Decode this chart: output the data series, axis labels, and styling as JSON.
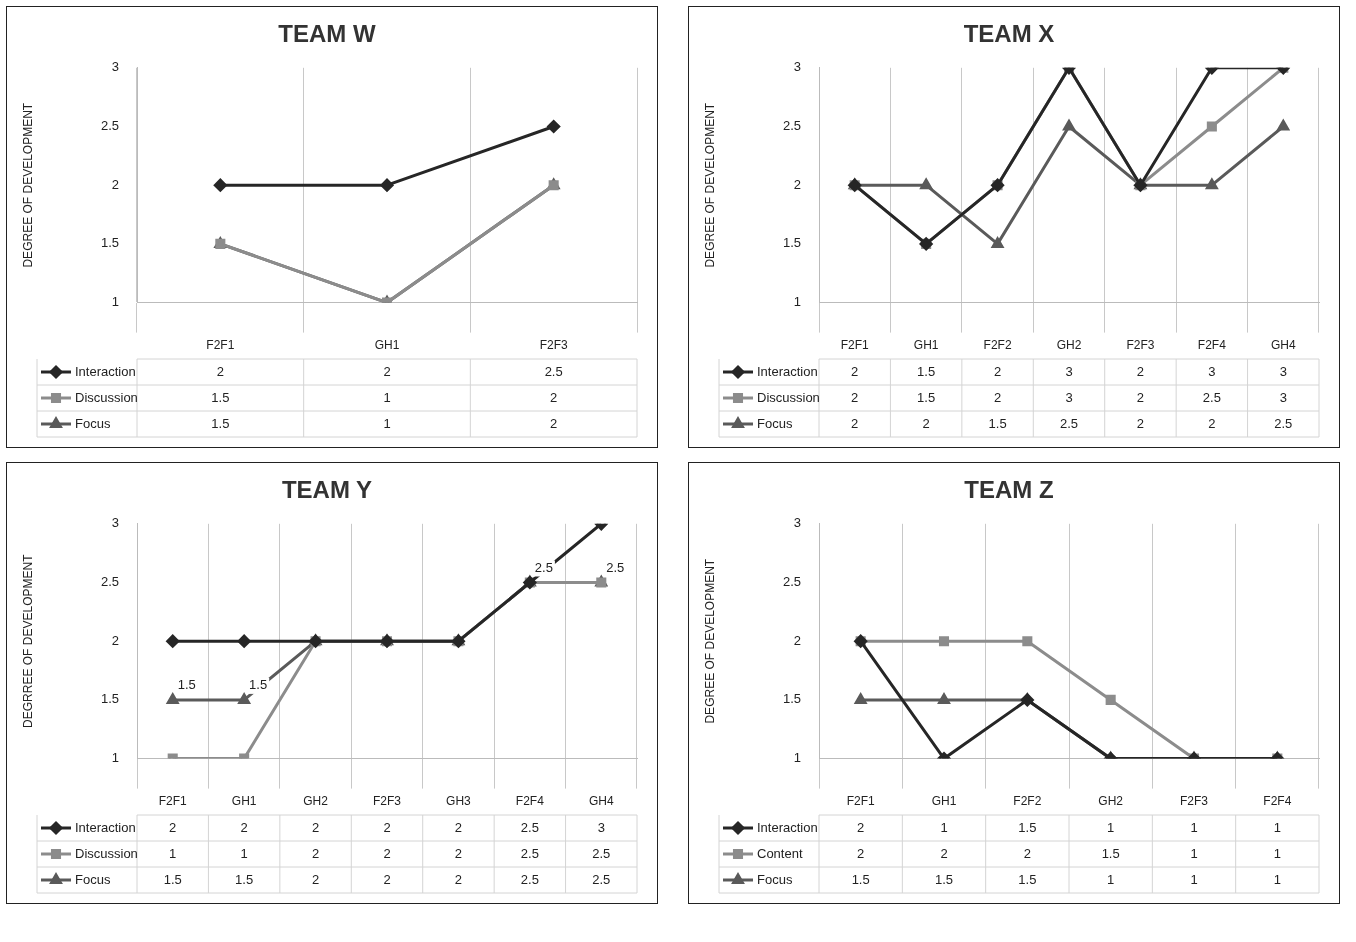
{
  "chart_data": [
    {
      "type": "line",
      "title": "TEAM W",
      "ylabel": "DEGREE OF DEVELOPMENT",
      "categories": [
        "F2F1",
        "GH1",
        "F2F3"
      ],
      "ylim": [
        1,
        3
      ],
      "yticks": [
        1,
        1.5,
        2,
        2.5,
        3
      ],
      "grid": "x",
      "legend": "bottom",
      "data_labels": true,
      "series": [
        {
          "name": "Interaction",
          "color": "#262626",
          "marker": "diamond",
          "values": [
            2,
            2,
            2.5
          ]
        },
        {
          "name": "Discussion",
          "color": "#8c8c8c",
          "marker": "square",
          "values": [
            1.5,
            1,
            2
          ]
        },
        {
          "name": "Focus",
          "color": "#5a5a5a",
          "marker": "triangle",
          "values": [
            1.5,
            1,
            2
          ]
        }
      ]
    },
    {
      "type": "line",
      "title": "TEAM X",
      "ylabel": "DEGREE OF DEVELOPMENT",
      "categories": [
        "F2F1",
        "GH1",
        "F2F2",
        "GH2",
        "F2F3",
        "F2F4",
        "GH4"
      ],
      "ylim": [
        1,
        3
      ],
      "yticks": [
        1,
        1.5,
        2,
        2.5,
        3
      ],
      "grid": "x",
      "legend": "bottom",
      "data_labels": true,
      "series": [
        {
          "name": "Interaction",
          "color": "#262626",
          "marker": "diamond",
          "values": [
            2,
            1.5,
            2,
            3,
            2,
            3,
            3
          ]
        },
        {
          "name": "Discussion",
          "color": "#8c8c8c",
          "marker": "square",
          "values": [
            2,
            1.5,
            2,
            3,
            2,
            2.5,
            3
          ]
        },
        {
          "name": "Focus",
          "color": "#5a5a5a",
          "marker": "triangle",
          "values": [
            2,
            2,
            1.5,
            2.5,
            2,
            2,
            2.5
          ]
        }
      ]
    },
    {
      "type": "line",
      "title": "TEAM Y",
      "ylabel": "DEGRREE OF DEVELOPMENT",
      "categories": [
        "F2F1",
        "GH1",
        "GH2",
        "F2F3",
        "GH3",
        "F2F4",
        "GH4"
      ],
      "ylim": [
        1,
        3
      ],
      "yticks": [
        1,
        1.5,
        2,
        2.5,
        3
      ],
      "grid": "x",
      "legend": "bottom",
      "data_labels": true,
      "series": [
        {
          "name": "Interaction",
          "color": "#262626",
          "marker": "diamond",
          "values": [
            2,
            2,
            2,
            2,
            2,
            2.5,
            3
          ]
        },
        {
          "name": "Discussion",
          "color": "#8c8c8c",
          "marker": "square",
          "values": [
            1,
            1,
            2,
            2,
            2,
            2.5,
            2.5
          ]
        },
        {
          "name": "Focus",
          "color": "#5a5a5a",
          "marker": "triangle",
          "values": [
            1.5,
            1.5,
            2,
            2,
            2,
            2.5,
            2.5
          ]
        }
      ],
      "annotations": [
        {
          "text": "1.5",
          "x": "F2F1",
          "y": 1.5
        },
        {
          "text": "1.5",
          "x": "GH1",
          "y": 1.5
        },
        {
          "text": "2.5",
          "x": "F2F4",
          "y": 2.5
        },
        {
          "text": "2.5",
          "x": "GH4",
          "y": 2.5
        }
      ]
    },
    {
      "type": "line",
      "title": "TEAM Z",
      "ylabel": "DEGREE OF DEVELOPMENT",
      "categories": [
        "F2F1",
        "GH1",
        "F2F2",
        "GH2",
        "F2F3",
        "F2F4"
      ],
      "ylim": [
        1,
        3
      ],
      "yticks": [
        1,
        1.5,
        2,
        2.5,
        3
      ],
      "grid": "x",
      "legend": "bottom",
      "data_labels": true,
      "series": [
        {
          "name": "Interaction",
          "color": "#262626",
          "marker": "diamond",
          "values": [
            2,
            1,
            1.5,
            1,
            1,
            1
          ]
        },
        {
          "name": "Content",
          "color": "#8c8c8c",
          "marker": "square",
          "values": [
            2,
            2,
            2,
            1.5,
            1,
            1
          ]
        },
        {
          "name": "Focus",
          "color": "#5a5a5a",
          "marker": "triangle",
          "values": [
            1.5,
            1.5,
            1.5,
            1,
            1,
            1
          ]
        }
      ]
    }
  ]
}
